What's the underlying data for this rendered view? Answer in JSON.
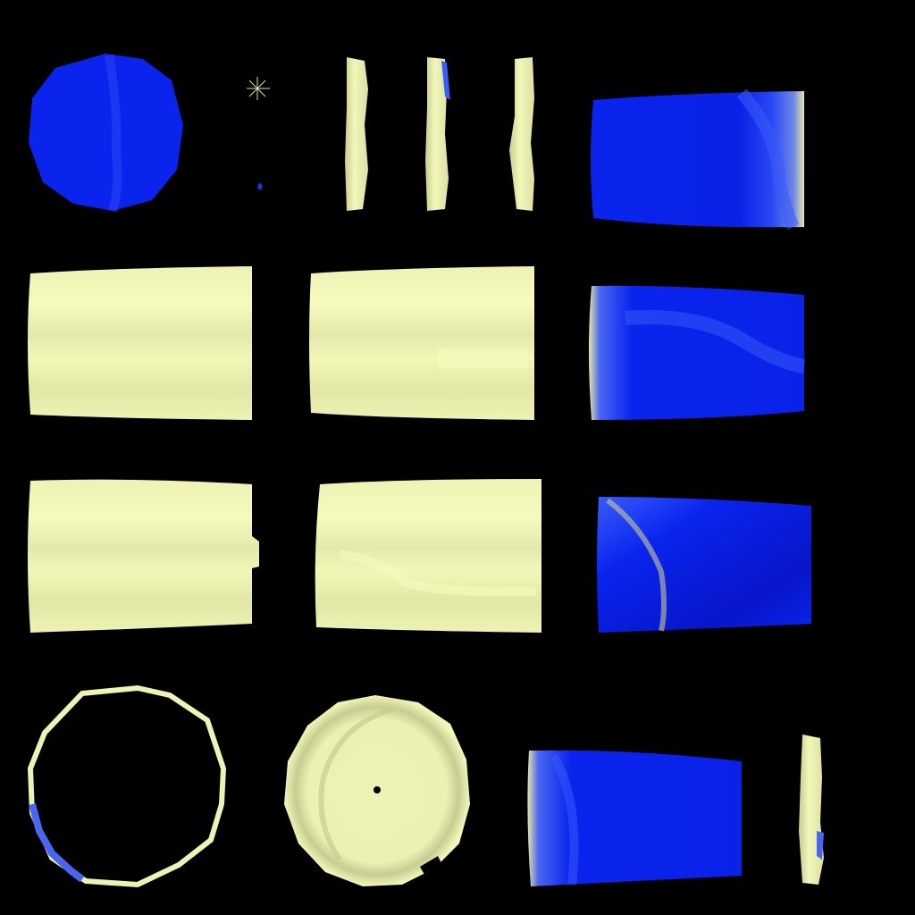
{
  "palette": {
    "background": "#000000",
    "cream": "#EEF2B4",
    "cream_light": "#F6FABC",
    "cream_shadow": "#C9CC92",
    "blue": "#0A24EE",
    "blue_light": "#3A5CFA",
    "blue_dark": "#0716C8"
  },
  "tiles": [
    {
      "name": "blue-disc",
      "material": "blue"
    },
    {
      "name": "speck-marks",
      "material": "mixed"
    },
    {
      "name": "cream-sliver-1",
      "material": "cream"
    },
    {
      "name": "cream-sliver-2",
      "material": "cream"
    },
    {
      "name": "cream-sliver-3",
      "material": "cream"
    },
    {
      "name": "blue-panel-top-right",
      "material": "blue"
    },
    {
      "name": "cream-panel-row2-left",
      "material": "cream"
    },
    {
      "name": "cream-panel-row2-center",
      "material": "cream"
    },
    {
      "name": "blue-panel-row2-right",
      "material": "blue"
    },
    {
      "name": "cream-panel-row3-left",
      "material": "cream"
    },
    {
      "name": "cream-panel-row3-center",
      "material": "cream"
    },
    {
      "name": "blue-panel-row3-right",
      "material": "blue"
    },
    {
      "name": "cream-ring",
      "material": "cream"
    },
    {
      "name": "cream-disc",
      "material": "cream"
    },
    {
      "name": "blue-panel-bottom",
      "material": "blue"
    },
    {
      "name": "cream-sliver-4",
      "material": "cream"
    }
  ]
}
